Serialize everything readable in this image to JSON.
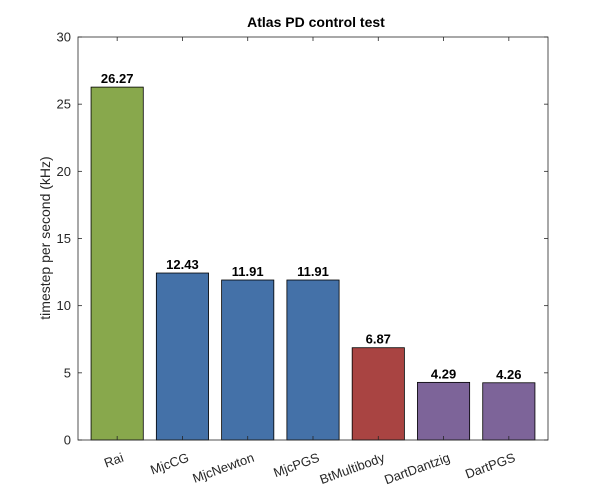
{
  "chart_data": {
    "type": "bar",
    "title": "Atlas PD control test",
    "xlabel": "",
    "ylabel": "timestep per second (kHz)",
    "categories": [
      "Rai",
      "MjcCG",
      "MjcNewton",
      "MjcPGS",
      "BtMultibody",
      "DartDantzig",
      "DartPGS"
    ],
    "values": [
      26.27,
      12.43,
      11.91,
      11.91,
      6.87,
      4.29,
      4.26
    ],
    "value_labels": [
      "26.27",
      "12.43",
      "11.91",
      "11.91",
      "6.87",
      "4.29",
      "4.26"
    ],
    "bar_colors": [
      "#88a84c",
      "#4471a8",
      "#4471a8",
      "#4471a8",
      "#a94442",
      "#7d6499",
      "#7d6499"
    ],
    "ylim": [
      0,
      30
    ],
    "yticks": [
      0,
      5,
      10,
      15,
      20,
      25,
      30
    ],
    "ytick_labels": [
      "0",
      "5",
      "10",
      "15",
      "20",
      "25",
      "30"
    ],
    "grid": false,
    "legend": "none"
  }
}
